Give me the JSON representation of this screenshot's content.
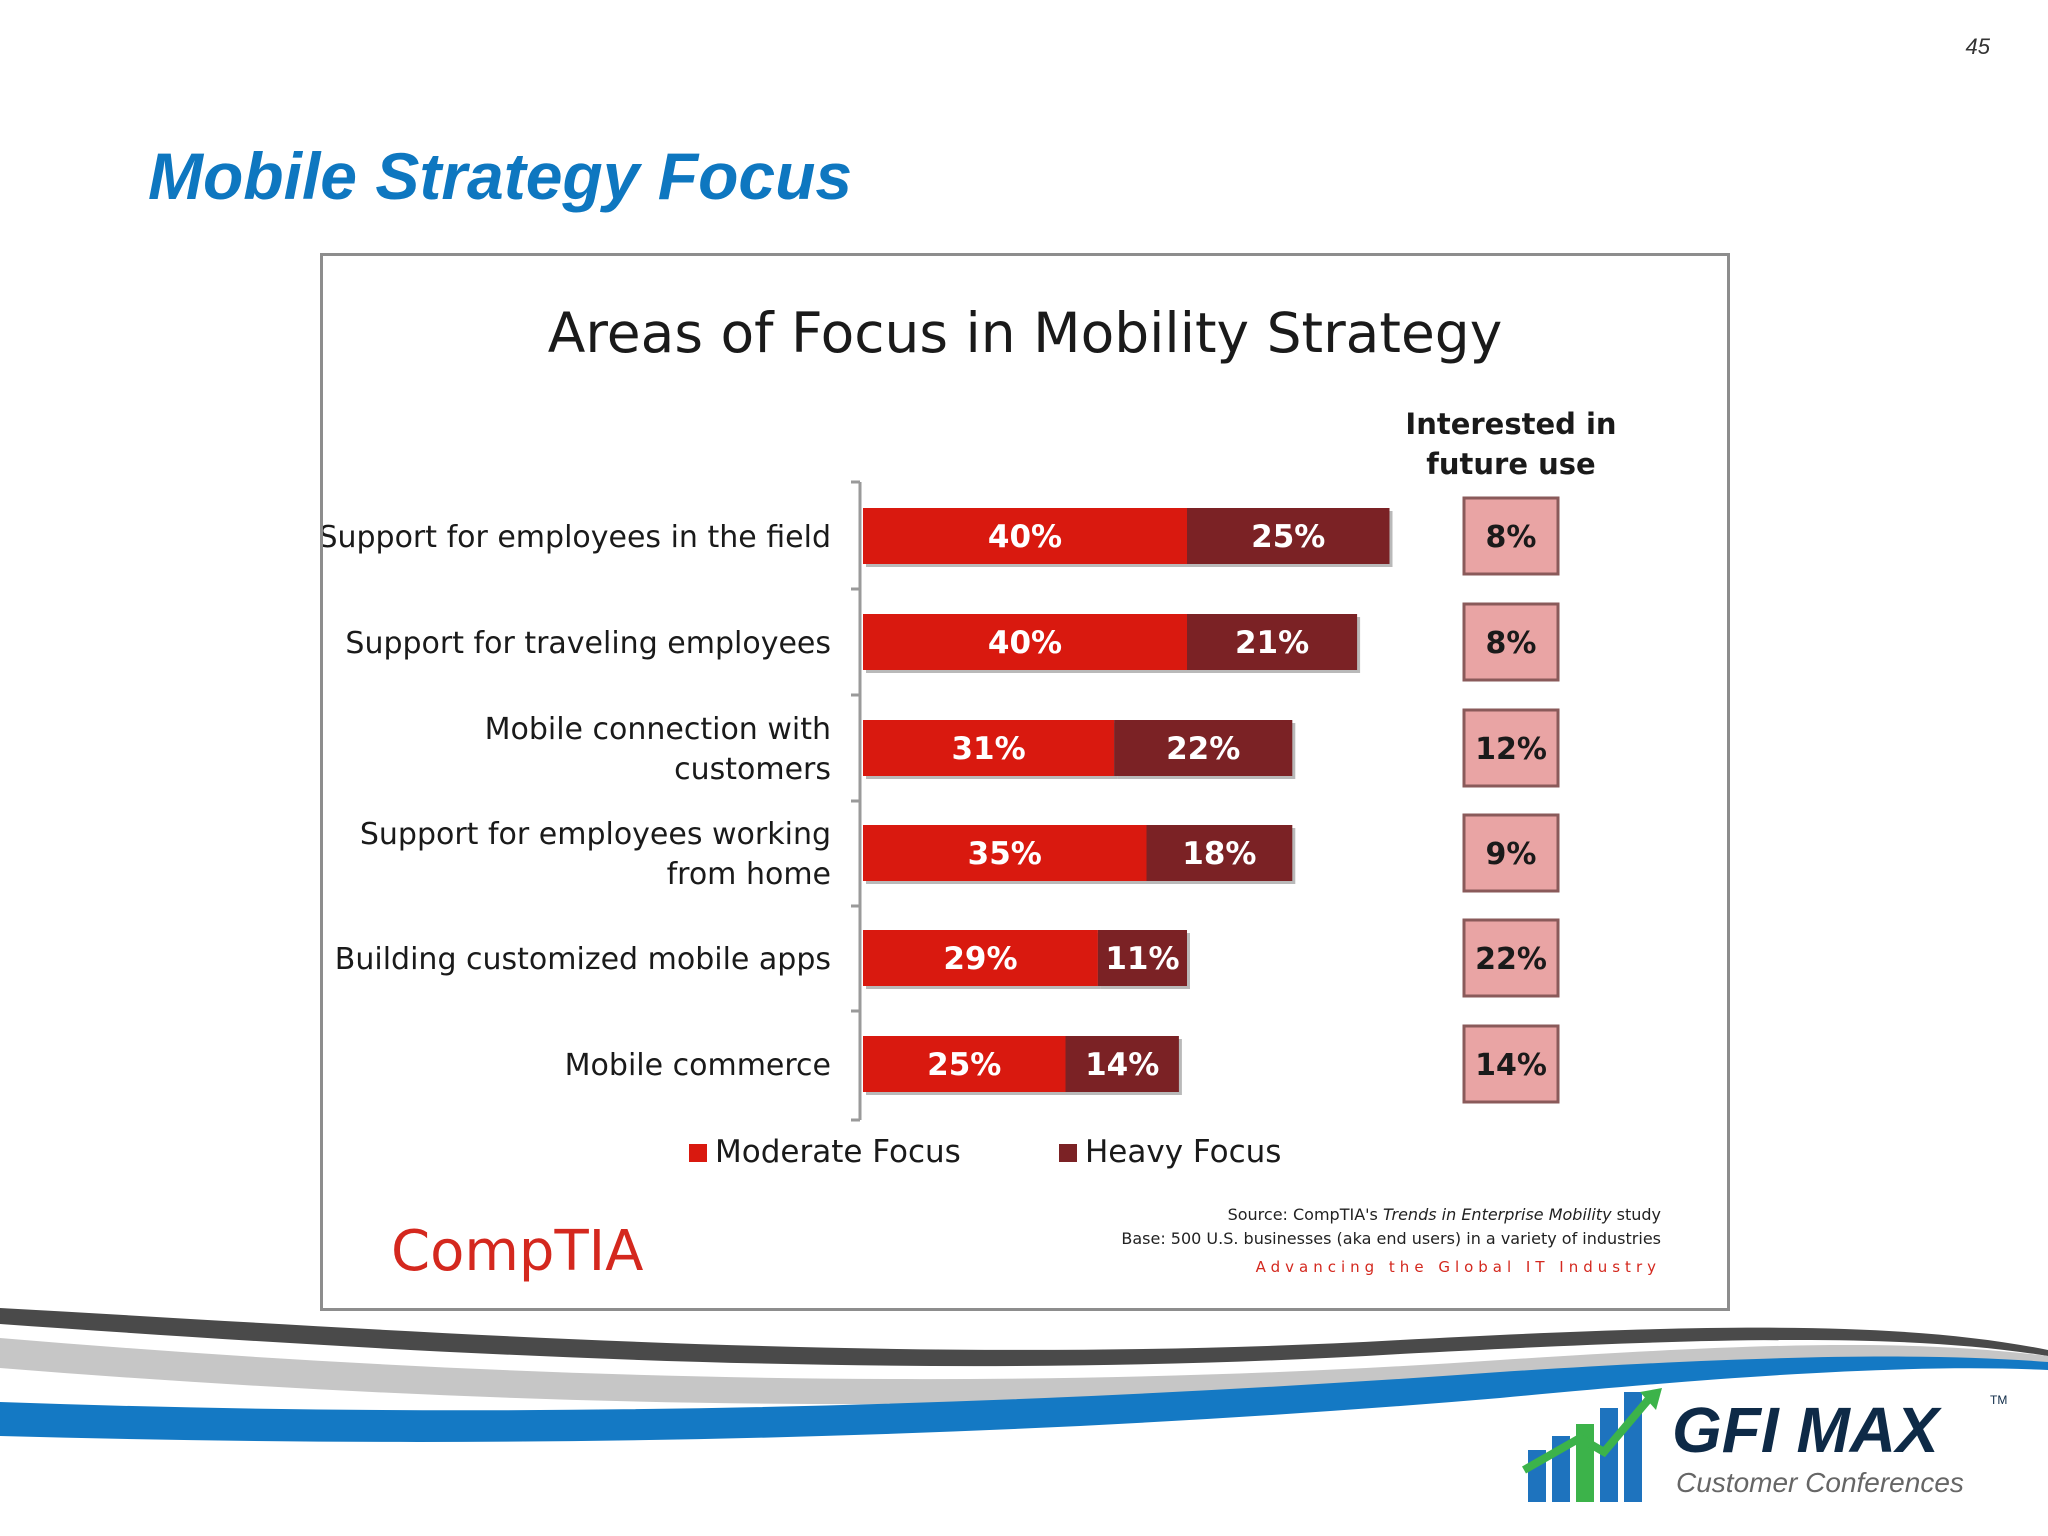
{
  "page_number": "45",
  "slide_title": "Mobile Strategy Focus",
  "chart_data": {
    "type": "bar",
    "orientation": "horizontal",
    "stacked": true,
    "title": "Areas of Focus in Mobility Strategy",
    "categories": [
      [
        "Support for employees in the field"
      ],
      [
        "Support for traveling employees"
      ],
      [
        "Mobile connection with",
        "customers"
      ],
      [
        "Support for employees working",
        "from home"
      ],
      [
        "Building customized mobile apps"
      ],
      [
        "Mobile commerce"
      ]
    ],
    "series": [
      {
        "name": "Moderate Focus",
        "color": "#d9190f",
        "values": [
          40,
          40,
          31,
          35,
          29,
          25
        ],
        "labels": [
          "40%",
          "40%",
          "31%",
          "35%",
          "29%",
          "25%"
        ]
      },
      {
        "name": "Heavy Focus",
        "color": "#7b2225",
        "values": [
          25,
          21,
          22,
          18,
          11,
          14
        ],
        "labels": [
          "25%",
          "21%",
          "22%",
          "18%",
          "11%",
          "14%"
        ]
      }
    ],
    "future_use": {
      "header": [
        "Interested in",
        "future use"
      ],
      "values": [
        8,
        8,
        12,
        9,
        22,
        14
      ],
      "labels": [
        "8%",
        "8%",
        "12%",
        "9%",
        "22%",
        "14%"
      ],
      "box_color": "#e9a4a4",
      "border_color": "#8a5a5a"
    },
    "legend_position": "bottom",
    "source": {
      "line1_prefix": "Source: CompTIA's ",
      "line1_italic": "Trends in Enterprise Mobility",
      "line1_suffix": " study",
      "line2": "Base: 500 U.S. businesses (aka end users) in a variety of industries",
      "tagline": "Advancing the Global IT Industry"
    },
    "logo_text": "CompTIA"
  },
  "footer": {
    "brand": "GFI MAX",
    "subtitle": "Customer Conferences",
    "tm": "TM"
  },
  "colors": {
    "title_blue": "#0e77c0",
    "navy": "#0e2a47",
    "logo_green": "#3cb34a",
    "logo_blue": "#1e73be"
  }
}
